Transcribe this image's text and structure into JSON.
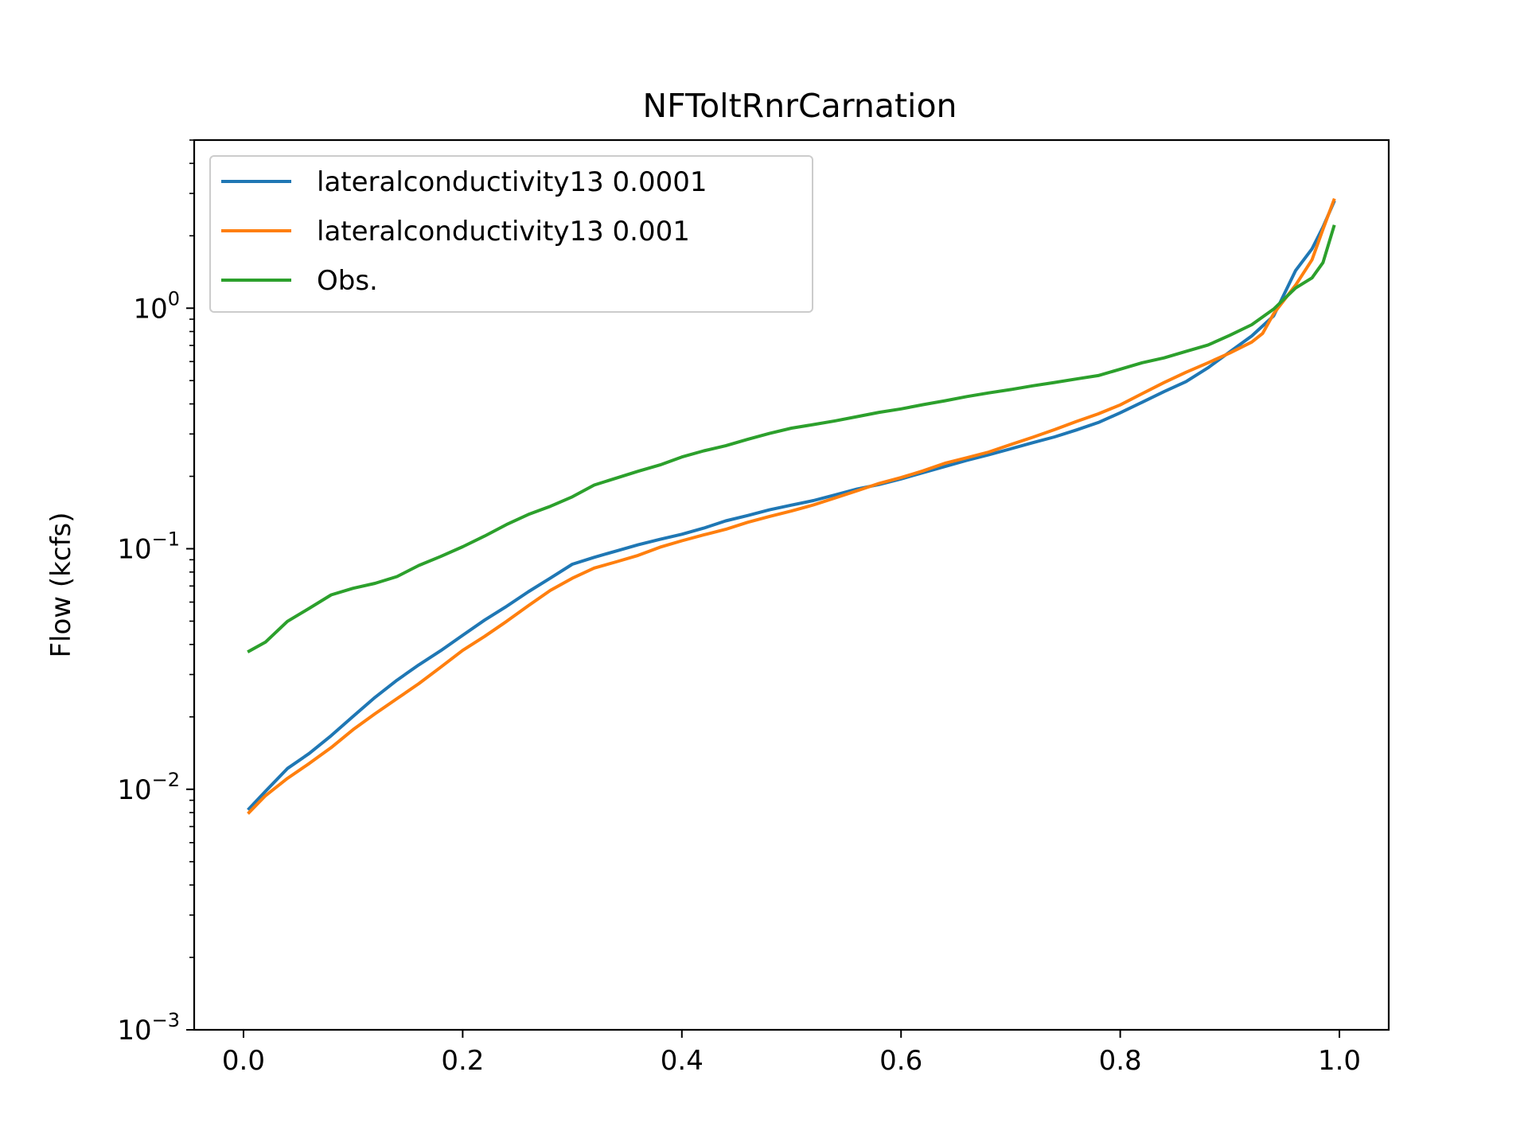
{
  "chart_data": {
    "type": "line",
    "title": "NFToltRnrCarnation",
    "xlabel": "",
    "ylabel": "Flow (kcfs)",
    "xlim": [
      -0.045,
      1.045
    ],
    "ylim": [
      0.001,
      5.0
    ],
    "yscale": "log",
    "xticks": [
      "0.0",
      "0.2",
      "0.4",
      "0.6",
      "0.8",
      "1.0"
    ],
    "xtick_values": [
      0.0,
      0.2,
      0.4,
      0.6,
      0.8,
      1.0
    ],
    "yticks": [
      {
        "base": "10",
        "exp": "−3",
        "value": 0.001
      },
      {
        "base": "10",
        "exp": "−2",
        "value": 0.01
      },
      {
        "base": "10",
        "exp": "−1",
        "value": 0.1
      },
      {
        "base": "10",
        "exp": "0",
        "value": 1.0
      }
    ],
    "legend_position": "upper-left",
    "grid": false,
    "series": [
      {
        "name": "lateralconductivity13 0.0001",
        "color": "#1f77b4",
        "x": [
          0.005,
          0.02,
          0.04,
          0.06,
          0.08,
          0.1,
          0.12,
          0.14,
          0.16,
          0.18,
          0.2,
          0.22,
          0.24,
          0.26,
          0.28,
          0.3,
          0.32,
          0.34,
          0.36,
          0.38,
          0.4,
          0.42,
          0.44,
          0.46,
          0.48,
          0.5,
          0.52,
          0.54,
          0.56,
          0.58,
          0.6,
          0.62,
          0.64,
          0.66,
          0.68,
          0.7,
          0.72,
          0.74,
          0.76,
          0.78,
          0.8,
          0.82,
          0.84,
          0.86,
          0.88,
          0.9,
          0.92,
          0.94,
          0.96,
          0.975,
          0.985,
          0.995
        ],
        "y": [
          0.0083,
          0.0098,
          0.0122,
          0.0141,
          0.0167,
          0.0201,
          0.0241,
          0.0284,
          0.0329,
          0.0377,
          0.0437,
          0.0505,
          0.0576,
          0.0663,
          0.0755,
          0.0862,
          0.0921,
          0.0978,
          0.1038,
          0.1094,
          0.1149,
          0.1218,
          0.1306,
          0.1374,
          0.1451,
          0.1518,
          0.1586,
          0.1675,
          0.1772,
          0.1849,
          0.1951,
          0.2072,
          0.2197,
          0.2329,
          0.2459,
          0.2602,
          0.2758,
          0.2916,
          0.3117,
          0.3347,
          0.3674,
          0.4067,
          0.4498,
          0.4947,
          0.5651,
          0.6587,
          0.7667,
          0.9295,
          1.4321,
          1.7643,
          2.1743,
          2.7625
        ]
      },
      {
        "name": "lateralconductivity13 0.001",
        "color": "#ff7f0e",
        "x": [
          0.005,
          0.02,
          0.04,
          0.06,
          0.08,
          0.1,
          0.12,
          0.14,
          0.16,
          0.18,
          0.2,
          0.22,
          0.24,
          0.26,
          0.28,
          0.3,
          0.32,
          0.34,
          0.36,
          0.38,
          0.4,
          0.42,
          0.44,
          0.46,
          0.48,
          0.5,
          0.52,
          0.54,
          0.56,
          0.58,
          0.6,
          0.62,
          0.64,
          0.66,
          0.68,
          0.7,
          0.72,
          0.74,
          0.76,
          0.78,
          0.8,
          0.82,
          0.84,
          0.86,
          0.88,
          0.9,
          0.92,
          0.93,
          0.94,
          0.96,
          0.975,
          0.985,
          0.995
        ],
        "y": [
          0.008,
          0.0094,
          0.0111,
          0.0128,
          0.0149,
          0.0177,
          0.0206,
          0.0238,
          0.0275,
          0.0322,
          0.0378,
          0.0432,
          0.0499,
          0.058,
          0.0671,
          0.0754,
          0.0831,
          0.0882,
          0.0938,
          0.1015,
          0.1079,
          0.1142,
          0.1204,
          0.1288,
          0.1363,
          0.1435,
          0.1521,
          0.1627,
          0.1743,
          0.1869,
          0.1976,
          0.2107,
          0.2267,
          0.2388,
          0.2524,
          0.2711,
          0.2906,
          0.3127,
          0.3381,
          0.3639,
          0.3961,
          0.4413,
          0.4907,
          0.5416,
          0.5928,
          0.6512,
          0.7234,
          0.7859,
          0.9488,
          1.2461,
          1.5897,
          2.1284,
          2.8148
        ]
      },
      {
        "name": "Obs.",
        "color": "#2ca02c",
        "x": [
          0.005,
          0.02,
          0.04,
          0.06,
          0.08,
          0.1,
          0.12,
          0.14,
          0.16,
          0.18,
          0.2,
          0.22,
          0.24,
          0.26,
          0.28,
          0.3,
          0.32,
          0.34,
          0.36,
          0.38,
          0.4,
          0.42,
          0.44,
          0.46,
          0.48,
          0.5,
          0.52,
          0.54,
          0.56,
          0.58,
          0.6,
          0.62,
          0.64,
          0.66,
          0.68,
          0.7,
          0.72,
          0.74,
          0.76,
          0.78,
          0.8,
          0.82,
          0.84,
          0.86,
          0.88,
          0.9,
          0.92,
          0.94,
          0.96,
          0.975,
          0.985,
          0.995
        ],
        "y": [
          0.0375,
          0.0409,
          0.0499,
          0.0565,
          0.0643,
          0.0685,
          0.0718,
          0.0766,
          0.0852,
          0.0929,
          0.1019,
          0.1129,
          0.1261,
          0.1389,
          0.1501,
          0.1644,
          0.1839,
          0.1965,
          0.2098,
          0.2231,
          0.2407,
          0.2552,
          0.2681,
          0.2849,
          0.3017,
          0.3172,
          0.3283,
          0.3401,
          0.3541,
          0.3691,
          0.3814,
          0.3971,
          0.4123,
          0.4292,
          0.4443,
          0.4589,
          0.4757,
          0.4911,
          0.5079,
          0.5247,
          0.5576,
          0.5934,
          0.6217,
          0.6612,
          0.7028,
          0.7714,
          0.8539,
          0.9914,
          1.2132,
          1.3364,
          1.5481,
          2.1856
        ]
      }
    ]
  }
}
